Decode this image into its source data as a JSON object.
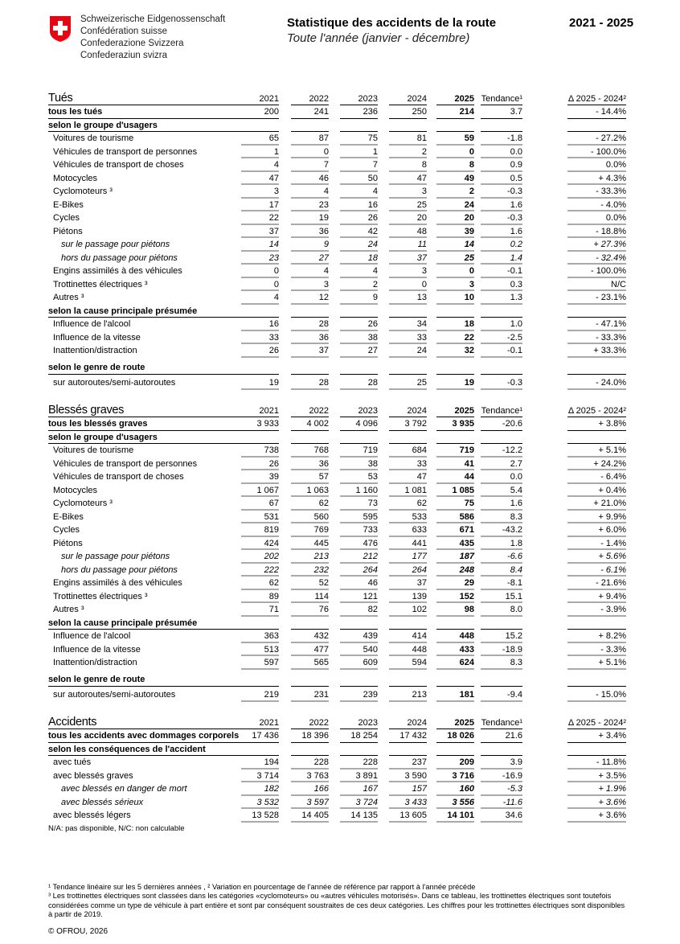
{
  "header": {
    "federation": [
      "Schweizerische Eidgenossenschaft",
      "Confédération suisse",
      "Confederazione Svizzera",
      "Confederaziun svizra"
    ],
    "title": "Statistique des accidents de la route",
    "subtitle": "Toute l'année (janvier - décembre)",
    "years": "2021 - 2025",
    "flag_color": "#e30613"
  },
  "columns": [
    "2021",
    "2022",
    "2023",
    "2024",
    "2025",
    "Tendance¹",
    "Δ 2025 - 2024²"
  ],
  "sections": [
    {
      "title": "Tués",
      "rows": [
        {
          "type": "total",
          "label": "tous les tués",
          "values": [
            "200",
            "241",
            "236",
            "250",
            "214",
            "3.7",
            "- 14.4%"
          ]
        },
        {
          "type": "group",
          "label": "selon le groupe d'usagers"
        },
        {
          "type": "item",
          "label": "Voitures de tourisme",
          "values": [
            "65",
            "87",
            "75",
            "81",
            "59",
            "-1.8",
            "- 27.2%"
          ]
        },
        {
          "type": "item",
          "label": "Véhicules de transport de personnes",
          "values": [
            "1",
            "0",
            "1",
            "2",
            "0",
            "0.0",
            "- 100.0%"
          ]
        },
        {
          "type": "item",
          "label": "Véhicules de transport de choses",
          "values": [
            "4",
            "7",
            "7",
            "8",
            "8",
            "0.9",
            "0.0%"
          ]
        },
        {
          "type": "item",
          "label": "Motocycles",
          "values": [
            "47",
            "46",
            "50",
            "47",
            "49",
            "0.5",
            "+ 4.3%"
          ]
        },
        {
          "type": "item",
          "label": "Cyclomoteurs ³",
          "values": [
            "3",
            "4",
            "4",
            "3",
            "2",
            "-0.3",
            "- 33.3%"
          ]
        },
        {
          "type": "item",
          "label": "E-Bikes",
          "values": [
            "17",
            "23",
            "16",
            "25",
            "24",
            "1.6",
            "- 4.0%"
          ]
        },
        {
          "type": "item",
          "label": "Cycles",
          "values": [
            "22",
            "19",
            "26",
            "20",
            "20",
            "-0.3",
            "0.0%"
          ]
        },
        {
          "type": "item",
          "label": "Piétons",
          "values": [
            "37",
            "36",
            "42",
            "48",
            "39",
            "1.6",
            "- 18.8%"
          ]
        },
        {
          "type": "sub",
          "label": "sur le passage pour piétons",
          "values": [
            "14",
            "9",
            "24",
            "11",
            "14",
            "0.2",
            "+ 27.3%"
          ]
        },
        {
          "type": "sub",
          "label": "hors du passage pour piétons",
          "values": [
            "23",
            "27",
            "18",
            "37",
            "25",
            "1.4",
            "- 32.4%"
          ]
        },
        {
          "type": "item",
          "label": "Engins assimilés à des véhicules",
          "values": [
            "0",
            "4",
            "4",
            "3",
            "0",
            "-0.1",
            "- 100.0%"
          ]
        },
        {
          "type": "item",
          "label": "Trottinettes électriques ³",
          "values": [
            "0",
            "3",
            "2",
            "0",
            "3",
            "0.3",
            "N/C"
          ]
        },
        {
          "type": "item",
          "label": "Autres ³",
          "values": [
            "4",
            "12",
            "9",
            "13",
            "10",
            "1.3",
            "- 23.1%"
          ]
        },
        {
          "type": "group",
          "label": "selon la cause principale présumée"
        },
        {
          "type": "item",
          "label": "Influence de l'alcool",
          "values": [
            "16",
            "28",
            "26",
            "34",
            "18",
            "1.0",
            "- 47.1%"
          ]
        },
        {
          "type": "item",
          "label": "Influence de la vitesse",
          "values": [
            "33",
            "36",
            "38",
            "33",
            "22",
            "-2.5",
            "- 33.3%"
          ]
        },
        {
          "type": "item",
          "label": "Inattention/distraction",
          "values": [
            "26",
            "37",
            "27",
            "24",
            "32",
            "-0.1",
            "+ 33.3%"
          ]
        },
        {
          "type": "group gap",
          "label": "selon le genre de route"
        },
        {
          "type": "item last",
          "label": "sur autoroutes/semi-autoroutes",
          "values": [
            "19",
            "28",
            "28",
            "25",
            "19",
            "-0.3",
            "- 24.0%"
          ]
        }
      ]
    },
    {
      "title": "Blessés graves",
      "rows": [
        {
          "type": "total",
          "label": "tous les blessés graves",
          "values": [
            "3 933",
            "4 002",
            "4 096",
            "3 792",
            "3 935",
            "-20.6",
            "+ 3.8%"
          ]
        },
        {
          "type": "group",
          "label": "selon le groupe d'usagers"
        },
        {
          "type": "item",
          "label": "Voitures de tourisme",
          "values": [
            "738",
            "768",
            "719",
            "684",
            "719",
            "-12.2",
            "+ 5.1%"
          ]
        },
        {
          "type": "item",
          "label": "Véhicules de transport de personnes",
          "values": [
            "26",
            "36",
            "38",
            "33",
            "41",
            "2.7",
            "+ 24.2%"
          ]
        },
        {
          "type": "item",
          "label": "Véhicules de transport de choses",
          "values": [
            "39",
            "57",
            "53",
            "47",
            "44",
            "0.0",
            "- 6.4%"
          ]
        },
        {
          "type": "item",
          "label": "Motocycles",
          "values": [
            "1 067",
            "1 063",
            "1 160",
            "1 081",
            "1 085",
            "5.4",
            "+ 0.4%"
          ]
        },
        {
          "type": "item",
          "label": "Cyclomoteurs ³",
          "values": [
            "67",
            "62",
            "73",
            "62",
            "75",
            "1.6",
            "+ 21.0%"
          ]
        },
        {
          "type": "item",
          "label": "E-Bikes",
          "values": [
            "531",
            "560",
            "595",
            "533",
            "586",
            "8.3",
            "+ 9.9%"
          ]
        },
        {
          "type": "item",
          "label": "Cycles",
          "values": [
            "819",
            "769",
            "733",
            "633",
            "671",
            "-43.2",
            "+ 6.0%"
          ]
        },
        {
          "type": "item",
          "label": "Piétons",
          "values": [
            "424",
            "445",
            "476",
            "441",
            "435",
            "1.8",
            "- 1.4%"
          ]
        },
        {
          "type": "sub",
          "label": "sur le passage pour piétons",
          "values": [
            "202",
            "213",
            "212",
            "177",
            "187",
            "-6.6",
            "+ 5.6%"
          ]
        },
        {
          "type": "sub",
          "label": "hors du passage pour piétons",
          "values": [
            "222",
            "232",
            "264",
            "264",
            "248",
            "8.4",
            "- 6.1%"
          ]
        },
        {
          "type": "item",
          "label": "Engins assimilés à des véhicules",
          "values": [
            "62",
            "52",
            "46",
            "37",
            "29",
            "-8.1",
            "- 21.6%"
          ]
        },
        {
          "type": "item",
          "label": "Trottinettes électriques ³",
          "values": [
            "89",
            "114",
            "121",
            "139",
            "152",
            "15.1",
            "+ 9.4%"
          ]
        },
        {
          "type": "item",
          "label": "Autres ³",
          "values": [
            "71",
            "76",
            "82",
            "102",
            "98",
            "8.0",
            "- 3.9%"
          ]
        },
        {
          "type": "group",
          "label": "selon la cause principale présumée"
        },
        {
          "type": "item",
          "label": "Influence de l'alcool",
          "values": [
            "363",
            "432",
            "439",
            "414",
            "448",
            "15.2",
            "+ 8.2%"
          ]
        },
        {
          "type": "item",
          "label": "Influence de la vitesse",
          "values": [
            "513",
            "477",
            "540",
            "448",
            "433",
            "-18.9",
            "- 3.3%"
          ]
        },
        {
          "type": "item",
          "label": "Inattention/distraction",
          "values": [
            "597",
            "565",
            "609",
            "594",
            "624",
            "8.3",
            "+ 5.1%"
          ]
        },
        {
          "type": "group gap",
          "label": "selon le genre de route"
        },
        {
          "type": "item last",
          "label": "sur autoroutes/semi-autoroutes",
          "values": [
            "219",
            "231",
            "239",
            "213",
            "181",
            "-9.4",
            "- 15.0%"
          ]
        }
      ]
    },
    {
      "title": "Accidents",
      "rows": [
        {
          "type": "total",
          "label": "tous les accidents avec dommages corporels",
          "values": [
            "17 436",
            "18 396",
            "18 254",
            "17 432",
            "18 026",
            "21.6",
            "+ 3.4%"
          ]
        },
        {
          "type": "group",
          "label": "selon les conséquences de l'accident"
        },
        {
          "type": "item",
          "label": "avec tués",
          "values": [
            "194",
            "228",
            "228",
            "237",
            "209",
            "3.9",
            "- 11.8%"
          ]
        },
        {
          "type": "item",
          "label": "avec blessés graves",
          "values": [
            "3 714",
            "3 763",
            "3 891",
            "3 590",
            "3 716",
            "-16.9",
            "+ 3.5%"
          ]
        },
        {
          "type": "sub",
          "label": "avec blessés en danger de mort",
          "values": [
            "182",
            "166",
            "167",
            "157",
            "160",
            "-5.3",
            "+ 1.9%"
          ]
        },
        {
          "type": "sub",
          "label": "avec blessés sérieux",
          "values": [
            "3 532",
            "3 597",
            "3 724",
            "3 433",
            "3 556",
            "-11.6",
            "+ 3.6%"
          ]
        },
        {
          "type": "item",
          "label": "avec blessés légers",
          "values": [
            "13 528",
            "14 405",
            "14 135",
            "13 605",
            "14 101",
            "34.6",
            "+ 3.6%"
          ]
        }
      ]
    }
  ],
  "legend_note": "N/A: pas disponible, N/C: non calculable",
  "footnotes": [
    "¹ Tendance linéaire sur les 5 dernières années , ² Variation en pourcentage de l'année de référence par rapport à l'année précéde",
    "³ Les trottinettes électriques sont classées dans les catégories «cyclomoteurs» ou «autres véhicules motorisés». Dans ce tableau, les trottinettes électriques sont toutefois considérées comme un type de véhicule à part entière et sont par conséquent soustraites de ces deux catégories. Les chiffres pour les trottinettes électriques sont disponibles à partir de 2019."
  ],
  "copyright": "© OFROU, 2026"
}
